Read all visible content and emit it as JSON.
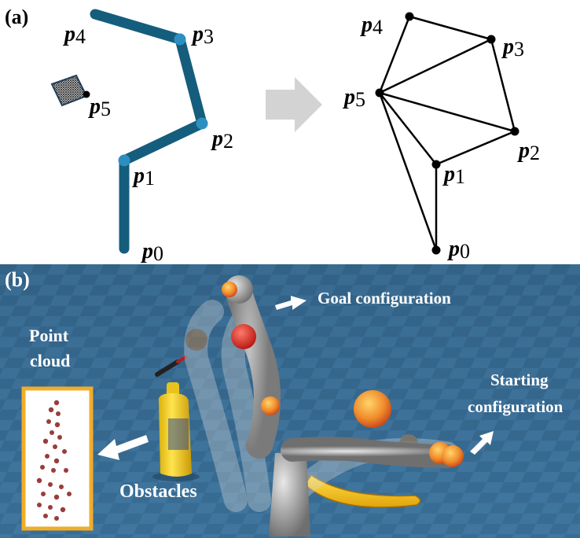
{
  "panel_a": {
    "label": "(a)",
    "arm_color": "#155d7c",
    "joint_color": "#2d8fc0",
    "points": [
      {
        "id": "p0",
        "sym": "p",
        "sub": "0"
      },
      {
        "id": "p1",
        "sym": "p",
        "sub": "1"
      },
      {
        "id": "p2",
        "sym": "p",
        "sub": "2"
      },
      {
        "id": "p3",
        "sym": "p",
        "sub": "3"
      },
      {
        "id": "p4",
        "sym": "p",
        "sub": "4"
      },
      {
        "id": "p5",
        "sym": "p",
        "sub": "5"
      }
    ],
    "graph_edges": [
      [
        "p0",
        "p1"
      ],
      [
        "p1",
        "p2"
      ],
      [
        "p2",
        "p3"
      ],
      [
        "p3",
        "p4"
      ],
      [
        "p4",
        "p5"
      ],
      [
        "p5",
        "p0"
      ],
      [
        "p5",
        "p1"
      ],
      [
        "p5",
        "p2"
      ],
      [
        "p5",
        "p3"
      ]
    ]
  },
  "panel_b": {
    "label": "(b)",
    "floor_color": "#2e5f85",
    "labels": {
      "point_cloud_1": "Point",
      "point_cloud_2": "cloud",
      "goal": "Goal configuration",
      "starting_1": "Starting",
      "starting_2": "configuration",
      "obstacles": "Obstacles"
    }
  }
}
